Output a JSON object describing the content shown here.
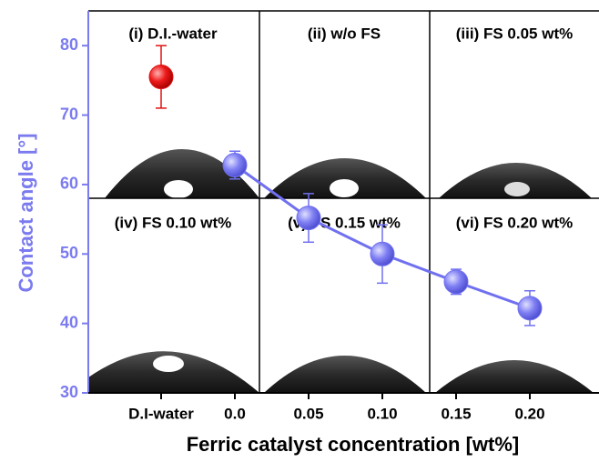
{
  "chart_data": {
    "type": "errorbar-scatter",
    "xlabel": "Ferric catalyst concentration [wt%]",
    "ylabel": "Contact angle [°]",
    "categories": [
      "D.I-water",
      "0.0",
      "0.05",
      "0.10",
      "0.15",
      "0.20"
    ],
    "ylim": [
      30,
      85
    ],
    "yticks": [
      30,
      40,
      50,
      60,
      70,
      80
    ],
    "y_axis_color": "#7b7bef",
    "panel_labels": [
      "(i) D.I.-water",
      "(ii) w/o FS",
      "(iii) FS 0.05 wt%",
      "(iv) FS 0.10 wt%",
      "(v) FS 0.15 wt%",
      "(vi) FS 0.20 wt%"
    ],
    "series": [
      {
        "color": "#e01010",
        "line": false,
        "values": [
          75.5,
          null,
          null,
          null,
          null,
          null
        ],
        "errors": [
          4.5,
          null,
          null,
          null,
          null,
          null
        ]
      },
      {
        "color": "#7070f0",
        "line": true,
        "values": [
          null,
          62.8,
          55.2,
          50.0,
          46.0,
          42.2
        ],
        "errors": [
          null,
          2.0,
          3.5,
          4.2,
          1.8,
          2.5
        ]
      }
    ]
  }
}
